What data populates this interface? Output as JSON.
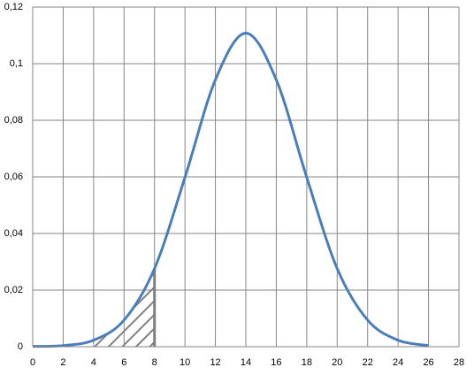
{
  "chart_data": {
    "type": "line",
    "x": [
      0,
      2,
      4,
      6,
      8,
      10,
      12,
      14,
      16,
      18,
      20,
      22,
      24,
      26
    ],
    "series": [
      {
        "color": "#4a7ebb",
        "values": [
          0.0001,
          0.0004,
          0.0023,
          0.0094,
          0.0276,
          0.0598,
          0.0943,
          0.1108,
          0.0943,
          0.0598,
          0.0276,
          0.0094,
          0.0023,
          0.0004
        ]
      }
    ],
    "shaded_range": [
      4,
      8
    ],
    "xlim": [
      0,
      28
    ],
    "xticks": [
      0,
      2,
      4,
      6,
      8,
      10,
      12,
      14,
      16,
      18,
      20,
      22,
      24,
      26,
      28
    ],
    "ylim": [
      0,
      0.12
    ],
    "yticks": [
      0,
      {
        "value": 0.02,
        "label": "0,02"
      },
      {
        "value": 0.04,
        "label": "0,04"
      },
      {
        "value": 0.06,
        "label": "0,06"
      },
      {
        "value": 0.08,
        "label": "0,08"
      },
      {
        "value": 0.1,
        "label": "0,1"
      },
      {
        "value": 0.12,
        "label": "0,12"
      }
    ],
    "grid": true,
    "smooth": true
  }
}
